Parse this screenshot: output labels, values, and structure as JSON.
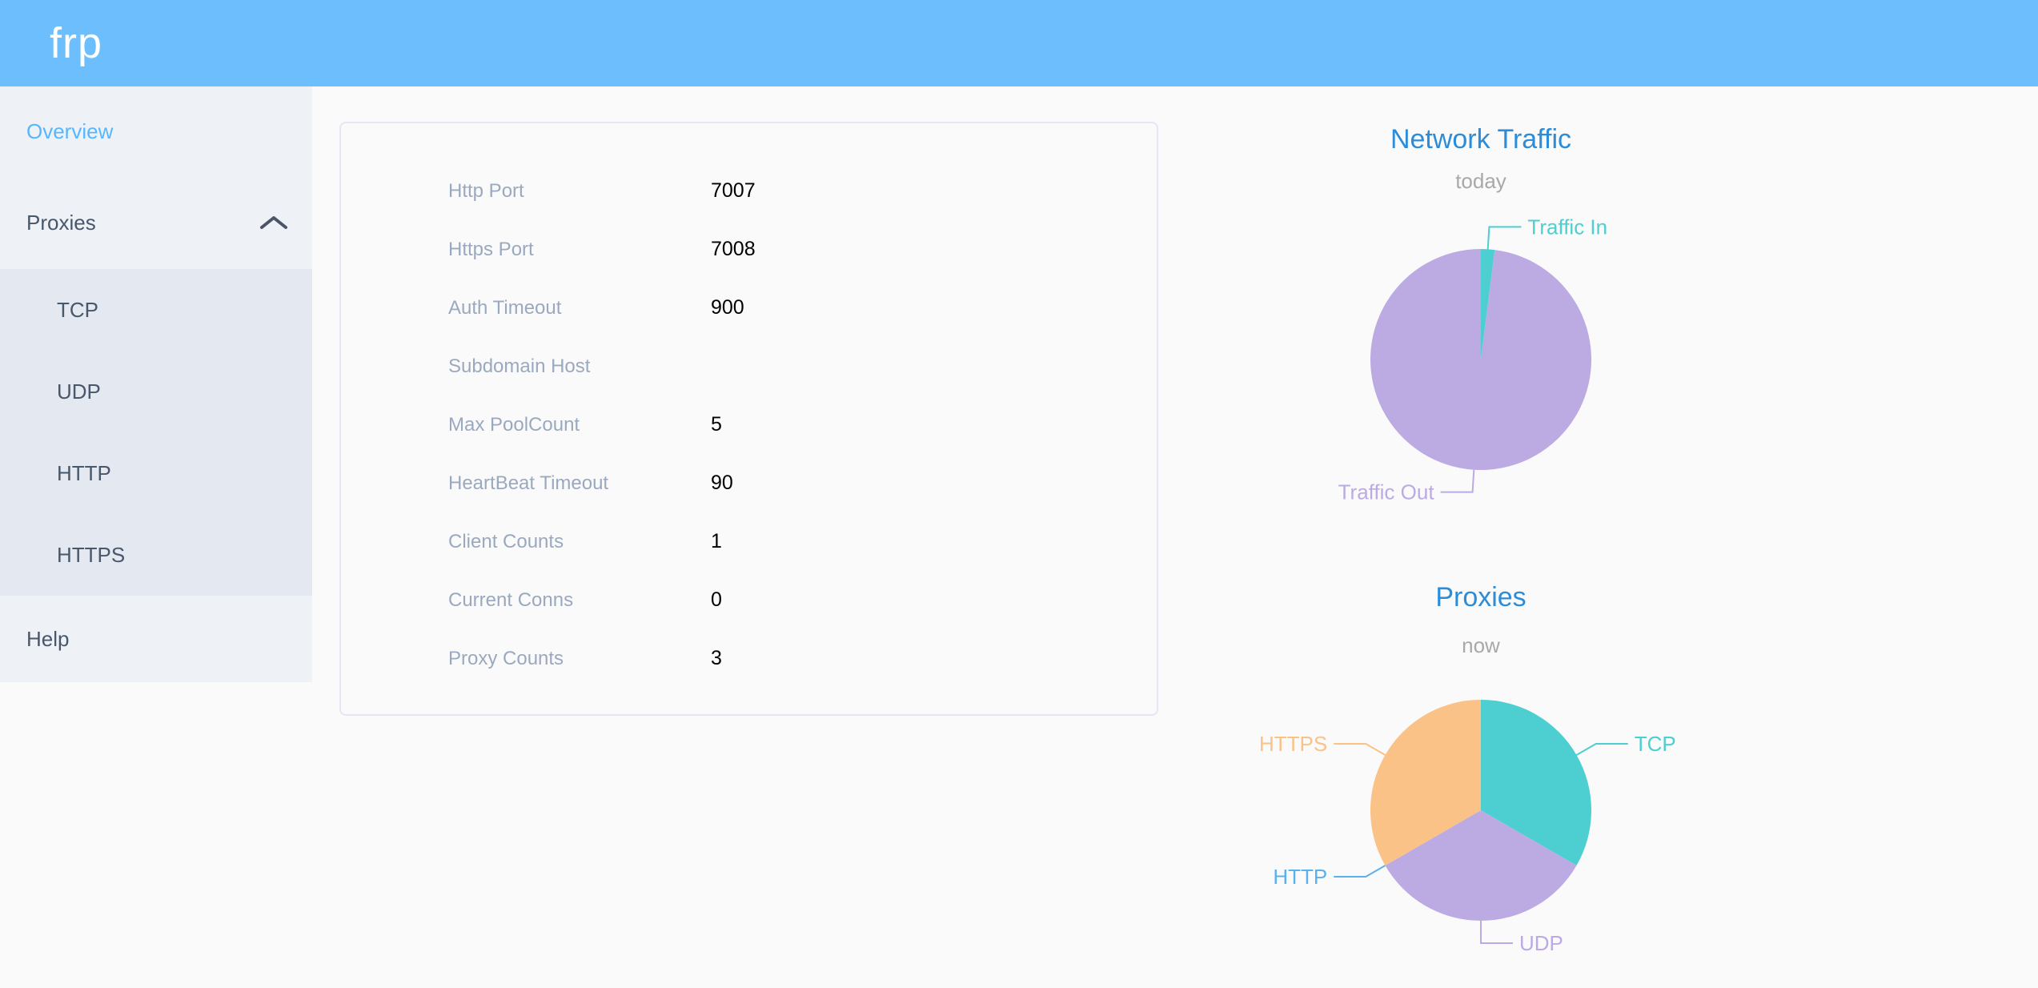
{
  "header": {
    "logo": "frp",
    "bg_color": "#6cbffc"
  },
  "sidebar": {
    "active_color": "#56b6fe",
    "items": [
      {
        "label": "Overview",
        "active": true
      },
      {
        "label": "Proxies",
        "expanded": true,
        "children": [
          {
            "label": "TCP"
          },
          {
            "label": "UDP"
          },
          {
            "label": "HTTP"
          },
          {
            "label": "HTTPS"
          }
        ]
      },
      {
        "label": "Help"
      }
    ]
  },
  "overview_card": {
    "rows": [
      {
        "label": "Http Port",
        "value": "7007"
      },
      {
        "label": "Https Port",
        "value": "7008"
      },
      {
        "label": "Auth Timeout",
        "value": "900"
      },
      {
        "label": "Subdomain Host",
        "value": ""
      },
      {
        "label": "Max PoolCount",
        "value": "5"
      },
      {
        "label": "HeartBeat Timeout",
        "value": "90"
      },
      {
        "label": "Client Counts",
        "value": "1"
      },
      {
        "label": "Current Conns",
        "value": "0"
      },
      {
        "label": "Proxy Counts",
        "value": "3"
      }
    ]
  },
  "chart_data": [
    {
      "type": "pie",
      "title": "Network Traffic",
      "subtitle": "today",
      "legend_position": "none",
      "slices": [
        {
          "label": "Traffic In",
          "value": 2,
          "color": "#4dcfd1"
        },
        {
          "label": "Traffic Out",
          "value": 98,
          "color": "#bcaae3"
        }
      ]
    },
    {
      "type": "pie",
      "title": "Proxies",
      "subtitle": "now",
      "legend_position": "none",
      "slices": [
        {
          "label": "TCP",
          "value": 1,
          "color": "#4dcfd1"
        },
        {
          "label": "UDP",
          "value": 1,
          "color": "#bcaae3"
        },
        {
          "label": "HTTP",
          "value": 0,
          "color": "#5ab1ef"
        },
        {
          "label": "HTTPS",
          "value": 1,
          "color": "#fac286"
        }
      ]
    }
  ]
}
